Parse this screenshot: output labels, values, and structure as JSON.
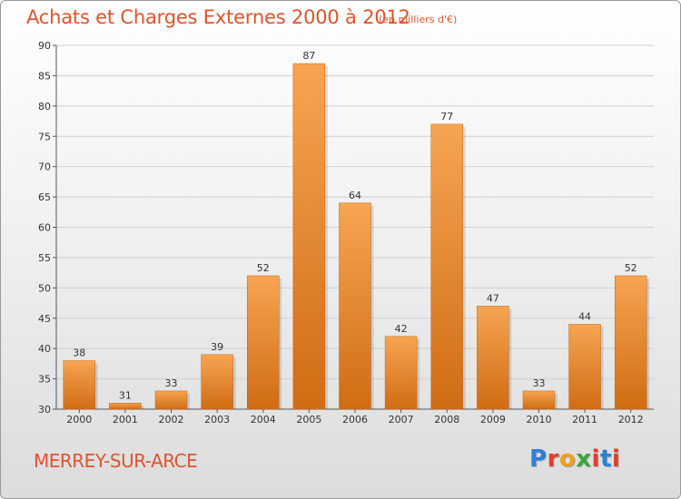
{
  "title": "Achats et Charges Externes 2000 à 2012",
  "subtitle": "(en milliers d'€)",
  "place": "MERREY-SUR-ARCE",
  "logo": {
    "letters": [
      "P",
      "r",
      "o",
      "x",
      "i",
      "t",
      "i"
    ],
    "colors": [
      "#2f7fd8",
      "#e23d2a",
      "#f2a01c",
      "#3aa63a",
      "#e23d2a",
      "#2f7fd8",
      "#e23d2a"
    ]
  },
  "colors": {
    "title": "#e0532c",
    "bar_light": "#f6a552",
    "bar_dark": "#d06c14",
    "grid": "#cfcfcf"
  },
  "chart_data": {
    "type": "bar",
    "title": "Achats et Charges Externes 2000 à 2012",
    "subtitle": "(en milliers d'€)",
    "categories": [
      "2000",
      "2001",
      "2002",
      "2003",
      "2004",
      "2005",
      "2006",
      "2007",
      "2008",
      "2009",
      "2010",
      "2011",
      "2012"
    ],
    "values": [
      38,
      31,
      33,
      39,
      52,
      87,
      64,
      42,
      77,
      47,
      33,
      44,
      52
    ],
    "ylim": [
      30,
      90
    ],
    "yticks": [
      30,
      35,
      40,
      45,
      50,
      55,
      60,
      65,
      70,
      75,
      80,
      85,
      90
    ],
    "grid": true,
    "data_labels": true
  }
}
